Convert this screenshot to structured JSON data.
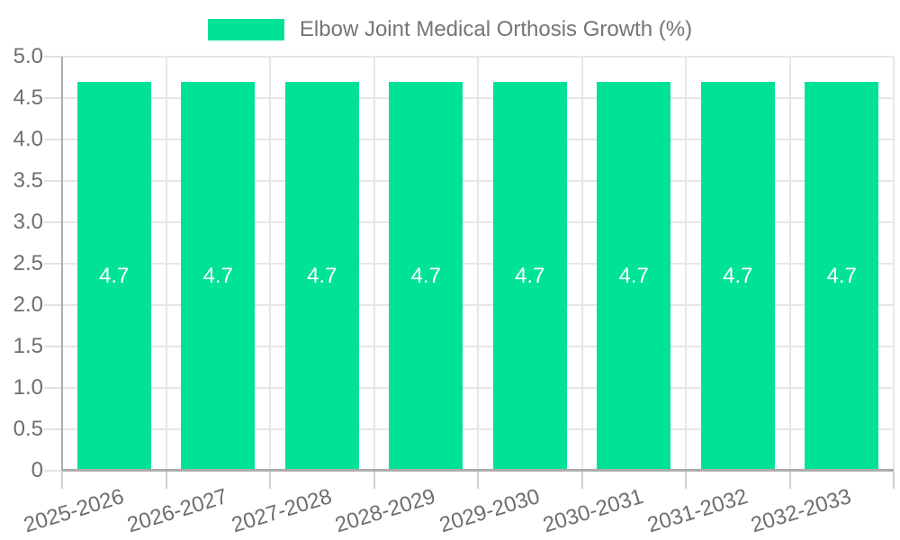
{
  "legend": {
    "label": "Elbow Joint Medical Orthosis Growth (%)",
    "swatch_color": "#00e396",
    "swatch_icon": "legend-swatch"
  },
  "colors": {
    "bar": "#00e396",
    "grid": "#e7e7e7",
    "axis": "#acacac",
    "bar_label_text": "#ffffff",
    "tick_label_text": "#6e6e6e",
    "legend_text": "#757575",
    "background": "#ffffff"
  },
  "chart_data": {
    "type": "bar",
    "title": "Elbow Joint Medical Orthosis Growth (%)",
    "xlabel": "",
    "ylabel": "",
    "legend_position": "top-center",
    "grid": true,
    "categories": [
      "2025-2026",
      "2026-2027",
      "2027-2028",
      "2028-2029",
      "2029-2030",
      "2030-2031",
      "2031-2032",
      "2032-2033"
    ],
    "values": [
      4.7,
      4.7,
      4.7,
      4.7,
      4.7,
      4.7,
      4.7,
      4.7
    ],
    "bar_labels": [
      "4.7",
      "4.7",
      "4.7",
      "4.7",
      "4.7",
      "4.7",
      "4.7",
      "4.7"
    ],
    "ylim": [
      0,
      5
    ],
    "ytick_values": [
      5,
      4.5,
      4,
      3.5,
      3,
      2.5,
      2,
      1.5,
      1,
      0.5,
      0
    ],
    "ytick_labels": [
      "5.0",
      "4.5",
      "4.0",
      "3.5",
      "3.0",
      "2.5",
      "2.0",
      "1.5",
      "1.0",
      "0.5",
      "0"
    ]
  }
}
